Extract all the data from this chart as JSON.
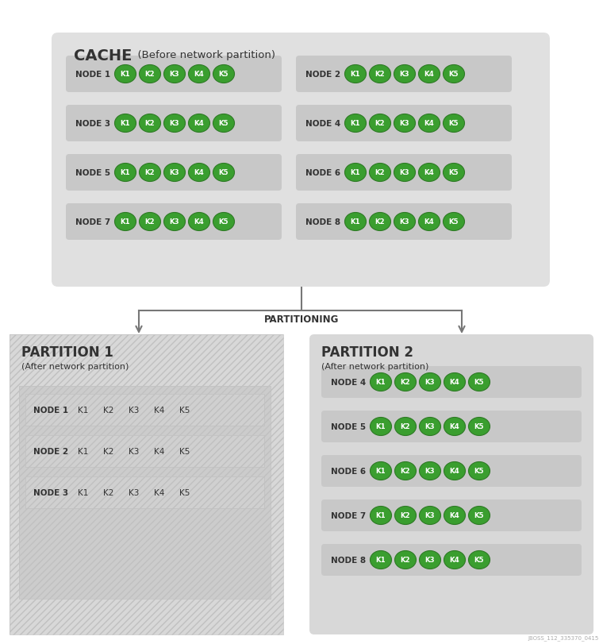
{
  "bg_color": "#ffffff",
  "cache_box_color": "#e0e0e0",
  "node_row_color": "#c8c8c8",
  "green_circle": "#3a9e2f",
  "green_circle_edge": "#2e7a25",
  "white_text": "#ffffff",
  "dark_text": "#333333",
  "cache_title": "CACHE",
  "cache_subtitle": "  (Before network partition)",
  "partitioning_label": "PARTITIONING",
  "partition1_title": "PARTITION 1",
  "partition1_subtitle": "(After network partition)",
  "partition2_title": "PARTITION 2",
  "partition2_subtitle": "(After network partition)",
  "partition1_nodes": [
    "NODE 1",
    "NODE 2",
    "NODE 3"
  ],
  "partition2_nodes": [
    "NODE 4",
    "NODE 5",
    "NODE 6",
    "NODE 7",
    "NODE 8"
  ],
  "keys": [
    "K1",
    "K2",
    "K3",
    "K4",
    "K5"
  ],
  "arrow_color": "#777777",
  "watermark": "JBOSS_112_335370_0415"
}
